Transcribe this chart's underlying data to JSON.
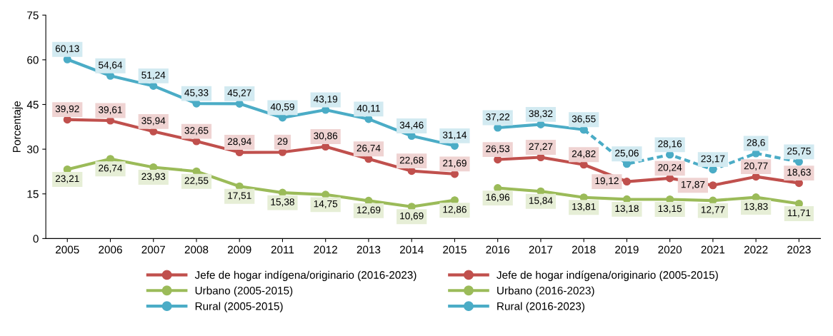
{
  "chart_data": {
    "type": "line",
    "ylabel": "Porcentaje",
    "categories": [
      "2005",
      "2006",
      "2007",
      "2008",
      "2009",
      "2011",
      "2012",
      "2013",
      "2014",
      "2015",
      "2016",
      "2017",
      "2018",
      "2019",
      "2020",
      "2021",
      "2022",
      "2023"
    ],
    "ylim": [
      0,
      75
    ],
    "yticks": [
      0,
      15,
      30,
      45,
      60,
      75
    ],
    "grid": false,
    "legend": "bottom",
    "marker": "circle",
    "series": [
      {
        "name": "Jefe de hogar indígena/originario (2016-2023)",
        "color": "#c0504d",
        "line_style": "solid",
        "values": [
          null,
          null,
          null,
          null,
          null,
          null,
          null,
          null,
          null,
          null,
          26.53,
          27.27,
          24.82,
          19.12,
          20.24,
          17.87,
          20.77,
          18.63
        ],
        "value_labels": [
          null,
          null,
          null,
          null,
          null,
          null,
          null,
          null,
          null,
          null,
          "26,53",
          "27,27",
          "24,82",
          "19,12",
          "20,24",
          "17,87",
          "20,77",
          "18,63"
        ]
      },
      {
        "name": "Urbano (2005-2015)",
        "color": "#9bbb59",
        "line_style": "solid",
        "values": [
          23.21,
          26.74,
          23.93,
          22.55,
          17.51,
          15.38,
          14.75,
          12.69,
          10.69,
          12.86,
          null,
          null,
          null,
          null,
          null,
          null,
          null,
          null
        ],
        "value_labels": [
          "23,21",
          "26,74",
          "23,93",
          "22,55",
          "17,51",
          "15,38",
          "14,75",
          "12,69",
          "10,69",
          "12,86",
          null,
          null,
          null,
          null,
          null,
          null,
          null,
          null
        ]
      },
      {
        "name": "Rural (2005-2015)",
        "color": "#4bacc6",
        "line_style": "solid",
        "values": [
          60.13,
          54.64,
          51.24,
          45.33,
          45.27,
          40.59,
          43.19,
          40.11,
          34.46,
          31.14,
          null,
          null,
          null,
          null,
          null,
          null,
          null,
          null
        ],
        "value_labels": [
          "60,13",
          "54,64",
          "51,24",
          "45,33",
          "45,27",
          "40,59",
          "43,19",
          "40,11",
          "34,46",
          "31,14",
          null,
          null,
          null,
          null,
          null,
          null,
          null,
          null
        ]
      },
      {
        "name": "Jefe de hogar indígena/originario (2005-2015)",
        "color": "#c0504d",
        "line_style": "solid",
        "values": [
          39.92,
          39.61,
          35.94,
          32.65,
          28.94,
          29,
          30.86,
          26.74,
          22.68,
          21.69,
          null,
          null,
          null,
          null,
          null,
          null,
          null,
          null
        ],
        "value_labels": [
          "39,92",
          "39,61",
          "35,94",
          "32,65",
          "28,94",
          "29",
          "30,86",
          "26,74",
          "22,68",
          "21,69",
          null,
          null,
          null,
          null,
          null,
          null,
          null,
          null
        ]
      },
      {
        "name": "Urbano (2016-2023)",
        "color": "#9bbb59",
        "line_style": "solid",
        "values": [
          null,
          null,
          null,
          null,
          null,
          null,
          null,
          null,
          null,
          null,
          16.96,
          15.84,
          13.81,
          13.18,
          13.15,
          12.77,
          13.83,
          11.71
        ],
        "value_labels": [
          null,
          null,
          null,
          null,
          null,
          null,
          null,
          null,
          null,
          null,
          "16,96",
          "15,84",
          "13,81",
          "13,18",
          "13,15",
          "12,77",
          "13,83",
          "11,71"
        ]
      },
      {
        "name": "Rural (2016-2023)",
        "color": "#4bacc6",
        "line_style": "solid",
        "values": [
          null,
          null,
          null,
          null,
          null,
          null,
          null,
          null,
          null,
          null,
          37.22,
          38.32,
          36.55,
          null,
          null,
          null,
          null,
          null
        ],
        "value_labels": [
          null,
          null,
          null,
          null,
          null,
          null,
          null,
          null,
          null,
          null,
          "37,22",
          "38,32",
          "36,55",
          null,
          null,
          null,
          null,
          null
        ]
      },
      {
        "color": "#4bacc6",
        "line_style": "dashed",
        "values": [
          null,
          null,
          null,
          null,
          null,
          null,
          null,
          null,
          null,
          null,
          null,
          null,
          36.55,
          25.06,
          28.16,
          23.17,
          28.6,
          25.75
        ],
        "value_labels": [
          null,
          null,
          null,
          null,
          null,
          null,
          null,
          null,
          null,
          null,
          null,
          null,
          null,
          "25,06",
          "28,16",
          "23,17",
          "28,6",
          "25,75"
        ]
      }
    ]
  }
}
